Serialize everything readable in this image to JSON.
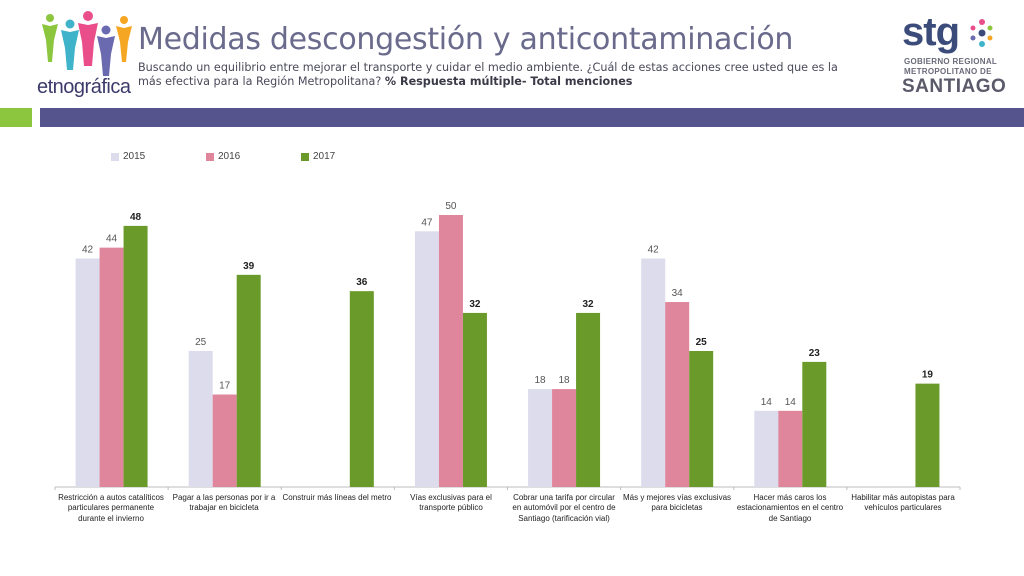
{
  "header": {
    "title": "Medidas descongestión y anticontaminación",
    "subtitle": "Buscando un equilibrio entre mejorar el transporte y cuidar el medio ambiente. ¿Cuál de estas acciones cree usted que es la más efectiva para la Región Metropolitana?",
    "subtitle_bold": "% Respuesta múltiple- Total menciones"
  },
  "logos": {
    "left_text": "etnográfica",
    "right_text": "stg",
    "right_sub1": "GOBIERNO REGIONAL",
    "right_sub2": "METROPOLITANO DE",
    "right_sub3": "SANTIAGO"
  },
  "colors": {
    "s2015": "#dcdcec",
    "s2016": "#e0869c",
    "s2017": "#6a9a2a",
    "band_green": "#8cc63f",
    "band_blue": "#56548c"
  },
  "chart_data": {
    "type": "bar",
    "title": "",
    "xlabel": "",
    "ylabel": "",
    "ylim": [
      0,
      55
    ],
    "legend_position": "top-left",
    "categories": [
      "Restricción a autos catalíticos particulares permanente durante el invierno",
      "Pagar a las personas por ir a trabajar en bicicleta",
      "Construir más líneas del metro",
      "Vías exclusivas para el transporte público",
      "Cobrar una tarifa por circular en automóvil por el centro de Santiago (tarificación vial)",
      "Más y mejores vías exclusivas para bicicletas",
      "Hacer más caros los estacionamientos en el centro de Santiago",
      "Habilitar más autopistas para vehículos particulares"
    ],
    "series": [
      {
        "name": "2015",
        "values": [
          42,
          25,
          null,
          47,
          18,
          42,
          14,
          null
        ]
      },
      {
        "name": "2016",
        "values": [
          44,
          17,
          null,
          50,
          18,
          34,
          14,
          null
        ]
      },
      {
        "name": "2017",
        "values": [
          48,
          39,
          36,
          32,
          32,
          25,
          23,
          19
        ]
      }
    ]
  }
}
